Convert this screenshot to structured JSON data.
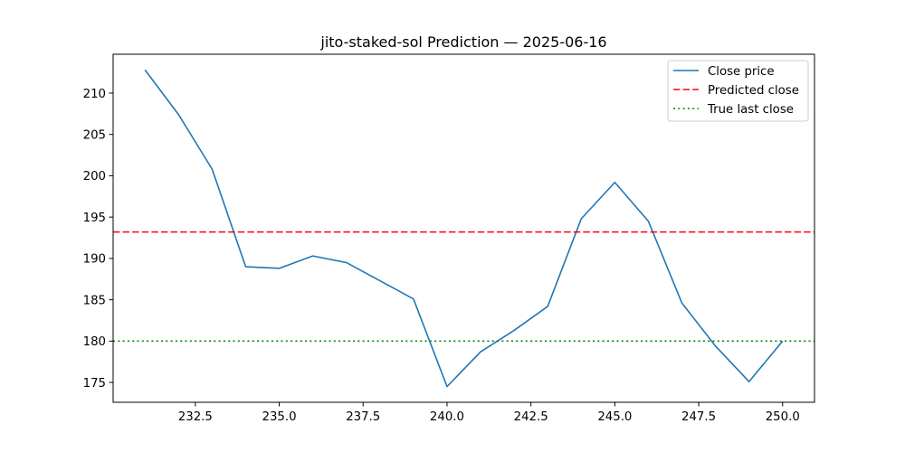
{
  "chart_data": {
    "type": "line",
    "title": "jito-staked-sol Prediction — 2025-06-16",
    "xlabel": "",
    "ylabel": "",
    "xlim": [
      230.05,
      250.95
    ],
    "ylim": [
      172.6,
      214.7
    ],
    "x_ticks": [
      232.5,
      235.0,
      237.5,
      240.0,
      242.5,
      245.0,
      247.5,
      250.0
    ],
    "x_tick_labels": [
      "232.5",
      "235.0",
      "237.5",
      "240.0",
      "242.5",
      "245.0",
      "247.5",
      "250.0"
    ],
    "y_ticks": [
      175,
      180,
      185,
      190,
      195,
      200,
      205,
      210
    ],
    "y_tick_labels": [
      "175",
      "180",
      "185",
      "190",
      "195",
      "200",
      "205",
      "210"
    ],
    "grid": false,
    "legend_position": "top-right",
    "series": [
      {
        "name": "Close price",
        "style": "solid",
        "color": "#1f77b4",
        "x": [
          231,
          232,
          233,
          234,
          235,
          236,
          237,
          238,
          239,
          240,
          241,
          242,
          243,
          244,
          245,
          246,
          247,
          248,
          249,
          250
        ],
        "values": [
          212.8,
          207.4,
          200.8,
          189.0,
          188.8,
          190.3,
          189.5,
          187.3,
          185.1,
          174.5,
          178.7,
          181.3,
          184.2,
          194.8,
          199.2,
          194.5,
          184.6,
          179.4,
          175.1,
          180.0
        ]
      },
      {
        "name": "Predicted close",
        "style": "dashed",
        "color": "#ff0000",
        "hline": 193.2
      },
      {
        "name": "True last close",
        "style": "dotted",
        "color": "#008000",
        "hline": 180.0
      }
    ]
  }
}
